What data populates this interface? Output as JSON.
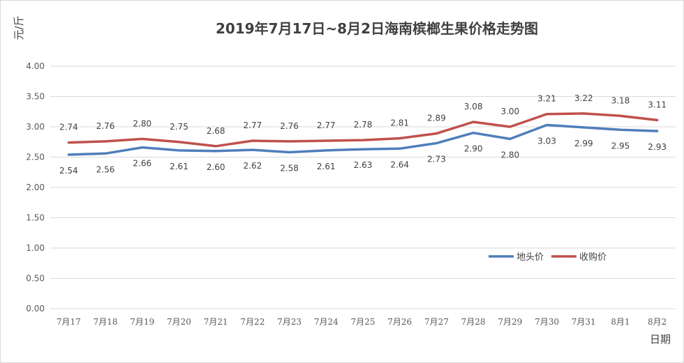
{
  "chart_data": {
    "type": "line",
    "title": "2019年7月17日~8月2日海南槟榔生果价格走势图",
    "ylabel": "元/斤",
    "xlabel": "日期",
    "ylim": [
      0,
      4
    ],
    "yticks": [
      "0.00",
      "0.50",
      "1.00",
      "1.50",
      "2.00",
      "2.50",
      "3.00",
      "3.50",
      "4.00"
    ],
    "categories": [
      "7月17",
      "7月18",
      "7月19",
      "7月20",
      "7月21",
      "7月22",
      "7月23",
      "7月24",
      "7月25",
      "7月26",
      "7月27",
      "7月28",
      "7月29",
      "7月30",
      "7月31",
      "8月1",
      "8月2"
    ],
    "series": [
      {
        "name": "地头价",
        "color": "#4F7EBB",
        "values": [
          2.54,
          2.56,
          2.66,
          2.61,
          2.6,
          2.62,
          2.58,
          2.61,
          2.63,
          2.64,
          2.73,
          2.9,
          2.8,
          3.03,
          2.99,
          2.95,
          2.93
        ],
        "labels": [
          "2.54",
          "2.56",
          "2.66",
          "2.61",
          "2.60",
          "2.62",
          "2.58",
          "2.61",
          "2.63",
          "2.64",
          "2.73",
          "2.90",
          "2.80",
          "3.03",
          "2.99",
          "2.95",
          "2.93"
        ]
      },
      {
        "name": "收购价",
        "color": "#C0504D",
        "values": [
          2.74,
          2.76,
          2.8,
          2.75,
          2.68,
          2.77,
          2.76,
          2.77,
          2.78,
          2.81,
          2.89,
          3.08,
          3.0,
          3.21,
          3.22,
          3.18,
          3.11
        ],
        "labels": [
          "2.74",
          "2.76",
          "2.80",
          "2.75",
          "2.68",
          "2.77",
          "2.76",
          "2.77",
          "2.78",
          "2.81",
          "2.89",
          "3.08",
          "3.00",
          "3.21",
          "3.22",
          "3.18",
          "3.11"
        ]
      }
    ],
    "grid": true,
    "legend": "right"
  }
}
